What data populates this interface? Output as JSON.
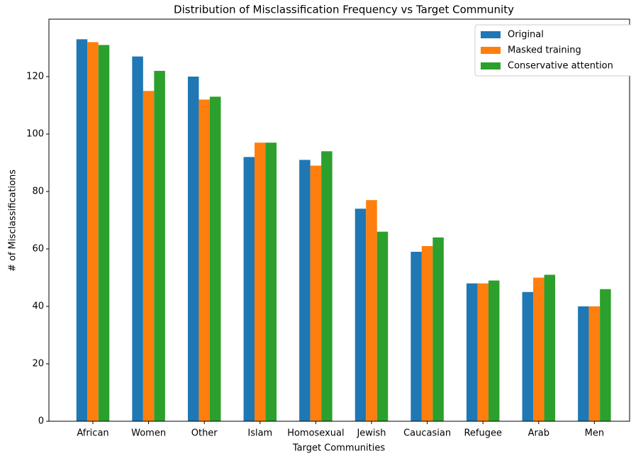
{
  "chart_data": {
    "type": "bar",
    "title": "Distribution of Misclassification Frequency vs Target Community",
    "x_label": "Target Communities",
    "y_label": "# of Misclassifications",
    "categories": [
      "African",
      "Women",
      "Other",
      "Islam",
      "Homosexual",
      "Jewish",
      "Caucasian",
      "Refugee",
      "Arab",
      "Men"
    ],
    "series": [
      {
        "name": "Original",
        "color": "#1f77b4",
        "values": [
          133,
          127,
          120,
          92,
          91,
          74,
          59,
          48,
          45,
          40
        ]
      },
      {
        "name": "Masked training",
        "color": "#ff7f0e",
        "values": [
          132,
          115,
          112,
          97,
          89,
          77,
          61,
          48,
          50,
          40
        ]
      },
      {
        "name": "Conservative attention",
        "color": "#2ca02c",
        "values": [
          131,
          122,
          113,
          97,
          94,
          66,
          64,
          49,
          51,
          46
        ]
      }
    ],
    "ylim": [
      0,
      140
    ],
    "yticks": [
      0,
      20,
      40,
      60,
      80,
      100,
      120
    ],
    "grid": false,
    "legend": "upper right"
  }
}
